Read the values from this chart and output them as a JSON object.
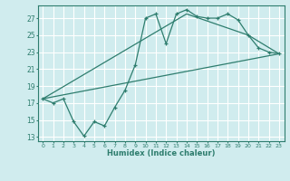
{
  "xlabel": "Humidex (Indice chaleur)",
  "bg_color": "#d0ecee",
  "grid_color": "#ffffff",
  "line_color": "#2e7d6e",
  "xlim": [
    -0.5,
    23.5
  ],
  "ylim": [
    12.5,
    28.5
  ],
  "yticks": [
    13,
    15,
    17,
    19,
    21,
    23,
    25,
    27
  ],
  "xticks": [
    0,
    1,
    2,
    3,
    4,
    5,
    6,
    7,
    8,
    9,
    10,
    11,
    12,
    13,
    14,
    15,
    16,
    17,
    18,
    19,
    20,
    21,
    22,
    23
  ],
  "line1_x": [
    0,
    1,
    2,
    3,
    4,
    5,
    6,
    7,
    8,
    9,
    10,
    11,
    12,
    13,
    14,
    15,
    16,
    17,
    18,
    19,
    20,
    21,
    22,
    23
  ],
  "line1_y": [
    17.5,
    17.0,
    17.5,
    14.8,
    13.1,
    14.8,
    14.3,
    16.5,
    18.5,
    21.5,
    27.0,
    27.5,
    24.0,
    27.5,
    28.0,
    27.2,
    27.0,
    27.0,
    27.5,
    26.8,
    25.0,
    23.5,
    23.0,
    22.8
  ],
  "line2_x": [
    0,
    23
  ],
  "line2_y": [
    17.5,
    22.8
  ],
  "line3_x": [
    0,
    14,
    20,
    23
  ],
  "line3_y": [
    17.5,
    27.5,
    25.0,
    22.8
  ]
}
